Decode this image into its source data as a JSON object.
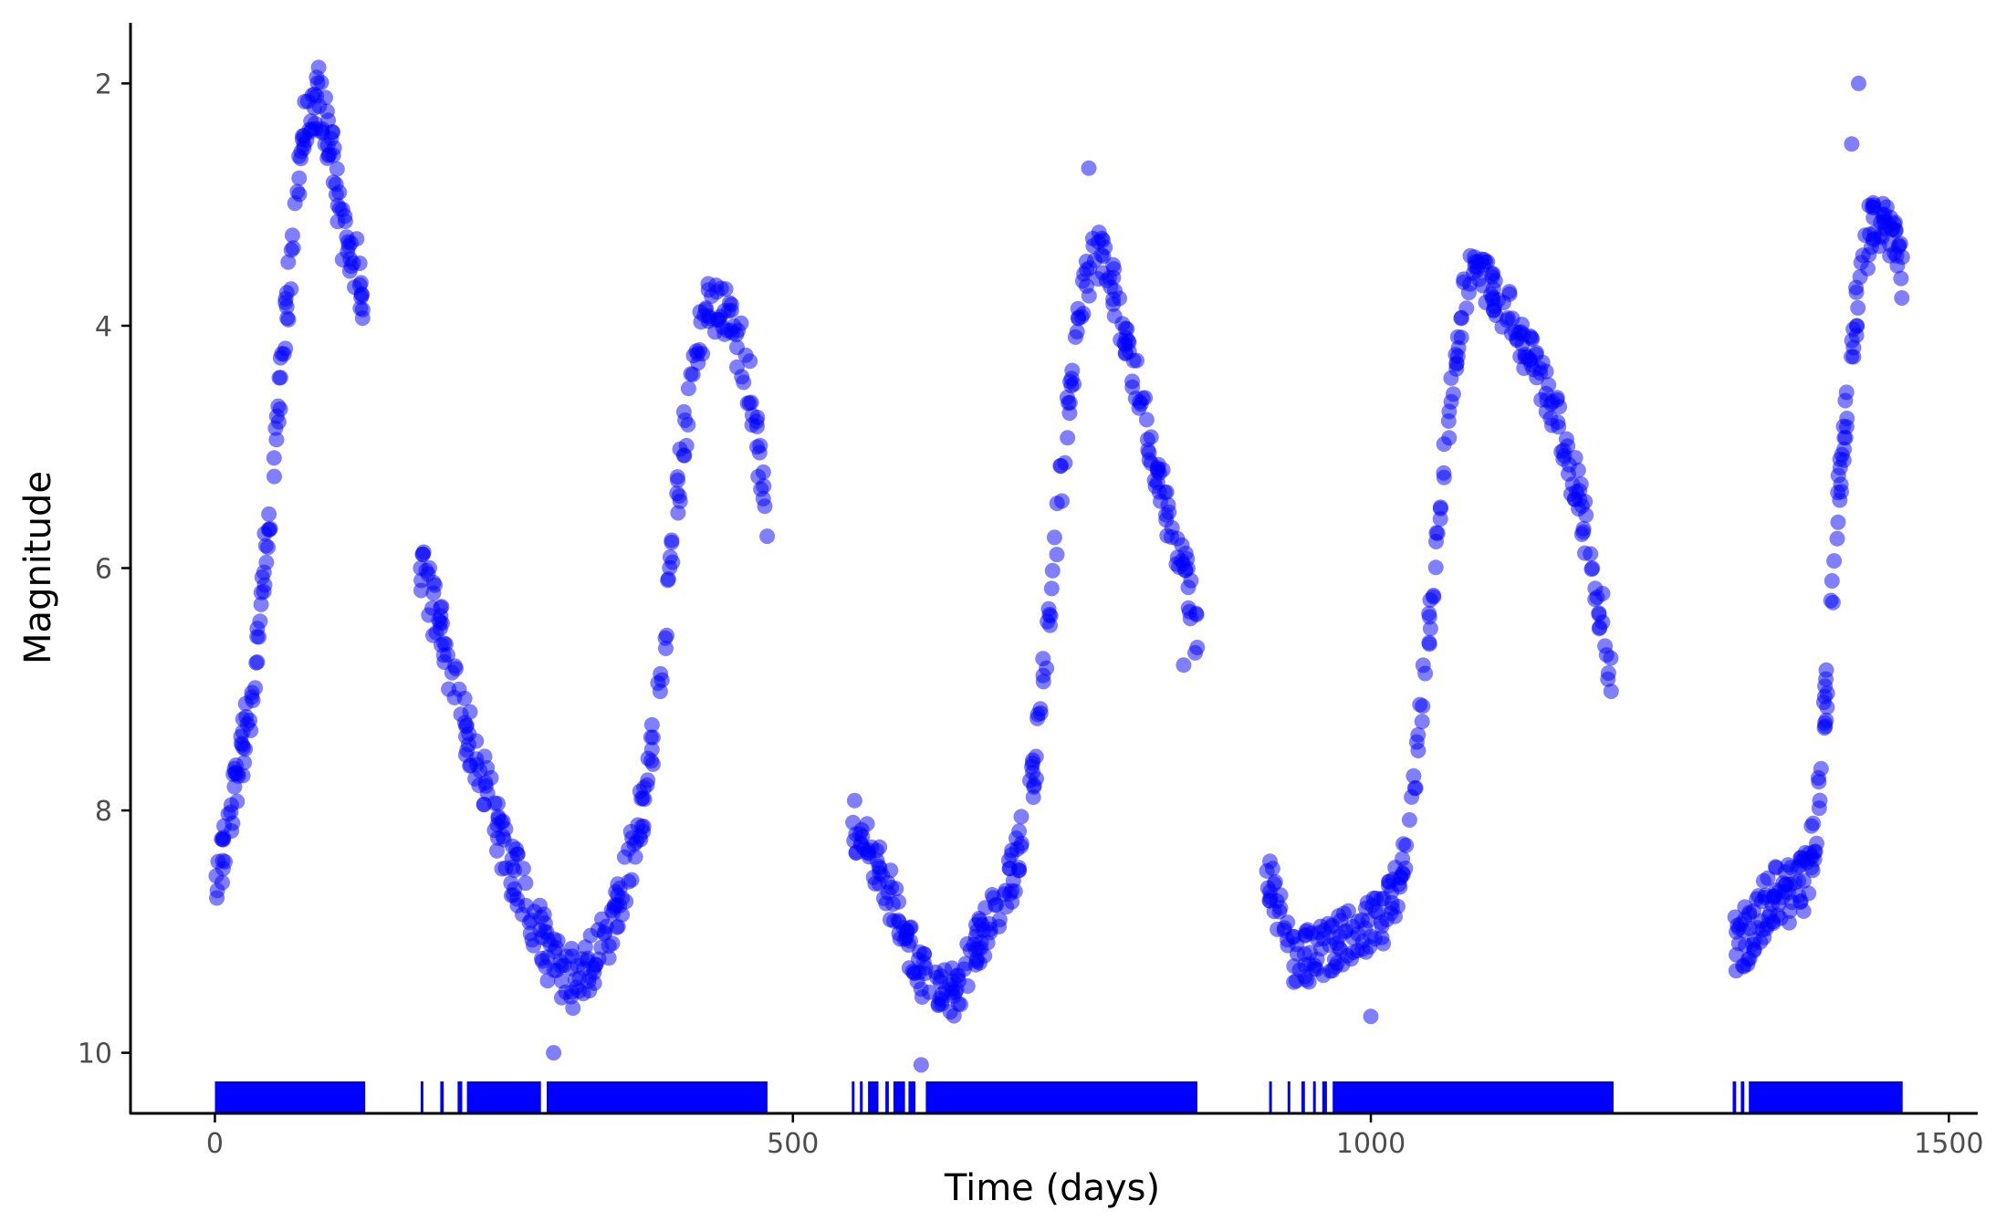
{
  "colors": {
    "points": "#0000ff",
    "axis": "#000000",
    "tick_text": "#4d4d4d",
    "background": "#ffffff"
  },
  "chart_data": {
    "type": "scatter",
    "title": "",
    "xlabel": "Time (days)",
    "ylabel": "Magnitude",
    "xlim": [
      -73,
      1525
    ],
    "ylim": [
      10.5,
      1.5
    ],
    "y_reversed": true,
    "grid": false,
    "legend": "none",
    "point_alpha": 0.5,
    "rug": "bottom",
    "x_ticks": [
      0,
      500,
      1000,
      1500
    ],
    "x_tick_labels": [
      "0",
      "500",
      "1000",
      "1500"
    ],
    "y_ticks": [
      2,
      4,
      6,
      8,
      10
    ],
    "y_tick_labels": [
      "2",
      "4",
      "6",
      "8",
      "10"
    ],
    "cycles": [
      {
        "anchors": [
          [
            0,
            8.6
          ],
          [
            10,
            8.2
          ],
          [
            20,
            7.7
          ],
          [
            30,
            7.2
          ],
          [
            40,
            6.3
          ],
          [
            50,
            5.2
          ],
          [
            60,
            4.1
          ],
          [
            70,
            3.0
          ],
          [
            80,
            2.2
          ],
          [
            90,
            2.1
          ],
          [
            100,
            2.5
          ],
          [
            110,
            3.2
          ],
          [
            120,
            3.4
          ],
          [
            128,
            3.8
          ]
        ],
        "density": 4,
        "spread": 0.25
      },
      {
        "anchors": [
          [
            178,
            6.0
          ],
          [
            195,
            6.5
          ],
          [
            210,
            7.1
          ],
          [
            230,
            7.7
          ],
          [
            250,
            8.3
          ],
          [
            270,
            8.8
          ],
          [
            290,
            9.2
          ],
          [
            310,
            9.4
          ],
          [
            330,
            9.2
          ],
          [
            350,
            8.8
          ],
          [
            370,
            8.0
          ],
          [
            385,
            7.0
          ],
          [
            395,
            6.0
          ],
          [
            405,
            5.0
          ],
          [
            415,
            4.3
          ],
          [
            425,
            3.9
          ],
          [
            435,
            3.8
          ],
          [
            445,
            4.0
          ],
          [
            455,
            4.2
          ],
          [
            465,
            4.6
          ],
          [
            472,
            5.2
          ],
          [
            478,
            5.6
          ]
        ],
        "density": 3,
        "spread": 0.25
      },
      {
        "anchors": [
          [
            552,
            8.1
          ],
          [
            565,
            8.3
          ],
          [
            580,
            8.6
          ],
          [
            600,
            9.1
          ],
          [
            620,
            9.5
          ],
          [
            640,
            9.5
          ],
          [
            660,
            9.1
          ],
          [
            680,
            8.8
          ],
          [
            695,
            8.4
          ],
          [
            710,
            7.6
          ],
          [
            720,
            6.6
          ],
          [
            730,
            5.5
          ],
          [
            740,
            4.5
          ],
          [
            750,
            3.8
          ],
          [
            760,
            3.4
          ],
          [
            770,
            3.5
          ],
          [
            780,
            3.8
          ],
          [
            790,
            4.2
          ],
          [
            800,
            4.6
          ],
          [
            810,
            5.0
          ],
          [
            820,
            5.4
          ],
          [
            830,
            5.8
          ],
          [
            840,
            6.1
          ],
          [
            850,
            6.5
          ]
        ],
        "density": 3,
        "spread": 0.22
      },
      {
        "anchors": [
          [
            910,
            8.5
          ],
          [
            930,
            9.2
          ],
          [
            950,
            9.2
          ],
          [
            970,
            9.1
          ],
          [
            990,
            9.0
          ],
          [
            1010,
            8.9
          ],
          [
            1025,
            8.6
          ],
          [
            1035,
            8.0
          ],
          [
            1045,
            7.0
          ],
          [
            1055,
            6.0
          ],
          [
            1065,
            5.0
          ],
          [
            1075,
            4.1
          ],
          [
            1085,
            3.6
          ],
          [
            1095,
            3.5
          ],
          [
            1105,
            3.7
          ],
          [
            1120,
            3.9
          ],
          [
            1135,
            4.2
          ],
          [
            1150,
            4.5
          ],
          [
            1165,
            4.9
          ],
          [
            1180,
            5.4
          ],
          [
            1190,
            5.9
          ],
          [
            1200,
            6.4
          ],
          [
            1208,
            6.9
          ]
        ],
        "density": 3,
        "spread": 0.22
      },
      {
        "anchors": [
          [
            1315,
            9.1
          ],
          [
            1330,
            9.0
          ],
          [
            1345,
            8.7
          ],
          [
            1360,
            8.7
          ],
          [
            1375,
            8.6
          ],
          [
            1385,
            8.2
          ],
          [
            1393,
            7.2
          ],
          [
            1400,
            6.0
          ],
          [
            1408,
            5.0
          ],
          [
            1415,
            4.2
          ],
          [
            1425,
            3.5
          ],
          [
            1435,
            3.1
          ],
          [
            1445,
            3.2
          ],
          [
            1455,
            3.4
          ],
          [
            1460,
            3.6
          ]
        ],
        "density": 4,
        "spread": 0.25
      }
    ],
    "outliers": [
      [
        88,
        1.95
      ],
      [
        1422,
        2.0
      ],
      [
        756,
        2.7
      ],
      [
        1416,
        2.5
      ],
      [
        178,
        6.0
      ],
      [
        195,
        6.5
      ],
      [
        552,
        8.1
      ],
      [
        910,
        8.5
      ],
      [
        1000,
        9.7
      ],
      [
        293,
        10.0
      ],
      [
        611,
        10.1
      ],
      [
        848,
        6.7
      ],
      [
        838,
        6.8
      ]
    ],
    "rug_segments": [
      [
        0,
        130
      ],
      [
        178,
        180
      ],
      [
        195,
        198
      ],
      [
        210,
        214
      ],
      [
        218,
        282
      ],
      [
        287,
        478
      ],
      [
        551,
        553
      ],
      [
        558,
        560
      ],
      [
        565,
        574
      ],
      [
        580,
        583
      ],
      [
        587,
        597
      ],
      [
        600,
        606
      ],
      [
        615,
        850
      ],
      [
        912,
        914
      ],
      [
        928,
        930
      ],
      [
        940,
        943
      ],
      [
        950,
        952
      ],
      [
        958,
        962
      ],
      [
        967,
        1210
      ],
      [
        1313,
        1316
      ],
      [
        1320,
        1323
      ],
      [
        1327,
        1460
      ]
    ]
  }
}
